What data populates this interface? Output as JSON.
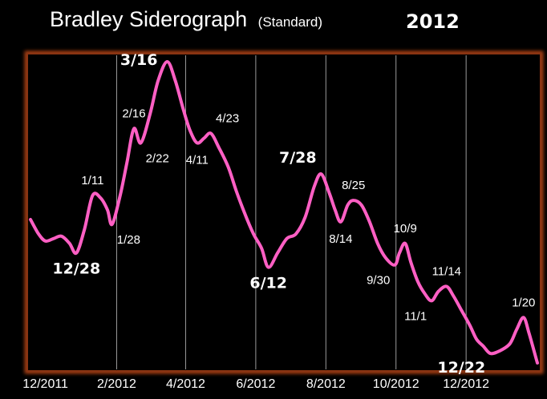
{
  "chart_data": {
    "type": "line",
    "title": "Bradley Siderograph",
    "title_note": "(Standard)",
    "title_year": "2012",
    "xlabel": "",
    "ylabel": "",
    "x_range": [
      "2011-11-18",
      "2013-02-01"
    ],
    "y_axis": "unlabeled",
    "grid": "vertical lines at two-month intervals",
    "colors": {
      "line": "#ff5fc4",
      "frame": "#b44a18",
      "grid": "#9a9a9a",
      "background": "#000000",
      "text": "#ffffff"
    },
    "x_ticks": [
      {
        "date": "2011-12-01",
        "label": "12/2011"
      },
      {
        "date": "2012-02-01",
        "label": "2/2012"
      },
      {
        "date": "2012-04-01",
        "label": "4/2012"
      },
      {
        "date": "2012-06-01",
        "label": "6/2012"
      },
      {
        "date": "2012-08-01",
        "label": "8/2012"
      },
      {
        "date": "2012-10-01",
        "label": "10/2012"
      },
      {
        "date": "2012-12-01",
        "label": "12/2012"
      }
    ],
    "series": [
      {
        "points": [
          [
            "2011-11-18",
            62
          ],
          [
            "2011-11-25",
            56
          ],
          [
            "2011-12-01",
            53
          ],
          [
            "2011-12-08",
            54
          ],
          [
            "2011-12-15",
            55
          ],
          [
            "2011-12-22",
            52
          ],
          [
            "2011-12-28",
            48
          ],
          [
            "2012-01-04",
            58
          ],
          [
            "2012-01-11",
            72
          ],
          [
            "2012-01-18",
            71
          ],
          [
            "2012-01-24",
            66
          ],
          [
            "2012-01-28",
            60
          ],
          [
            "2012-02-04",
            72
          ],
          [
            "2012-02-10",
            86
          ],
          [
            "2012-02-16",
            100
          ],
          [
            "2012-02-22",
            94
          ],
          [
            "2012-03-01",
            106
          ],
          [
            "2012-03-08",
            120
          ],
          [
            "2012-03-16",
            128
          ],
          [
            "2012-03-23",
            120
          ],
          [
            "2012-03-30",
            108
          ],
          [
            "2012-04-05",
            99
          ],
          [
            "2012-04-11",
            94
          ],
          [
            "2012-04-17",
            96
          ],
          [
            "2012-04-23",
            98
          ],
          [
            "2012-04-30",
            92
          ],
          [
            "2012-05-08",
            84
          ],
          [
            "2012-05-15",
            74
          ],
          [
            "2012-05-22",
            65
          ],
          [
            "2012-05-30",
            56
          ],
          [
            "2012-06-06",
            50
          ],
          [
            "2012-06-12",
            42
          ],
          [
            "2012-06-20",
            48
          ],
          [
            "2012-06-28",
            54
          ],
          [
            "2012-07-06",
            56
          ],
          [
            "2012-07-14",
            63
          ],
          [
            "2012-07-22",
            76
          ],
          [
            "2012-07-28",
            81
          ],
          [
            "2012-08-04",
            73
          ],
          [
            "2012-08-09",
            66
          ],
          [
            "2012-08-14",
            61
          ],
          [
            "2012-08-20",
            68
          ],
          [
            "2012-08-25",
            70
          ],
          [
            "2012-09-01",
            68
          ],
          [
            "2012-09-08",
            61
          ],
          [
            "2012-09-15",
            52
          ],
          [
            "2012-09-22",
            46
          ],
          [
            "2012-09-30",
            43
          ],
          [
            "2012-10-04",
            48
          ],
          [
            "2012-10-09",
            52
          ],
          [
            "2012-10-14",
            44
          ],
          [
            "2012-10-20",
            36
          ],
          [
            "2012-10-26",
            31
          ],
          [
            "2012-11-01",
            28
          ],
          [
            "2012-11-07",
            32
          ],
          [
            "2012-11-14",
            34
          ],
          [
            "2012-11-20",
            30
          ],
          [
            "2012-11-27",
            24
          ],
          [
            "2012-12-04",
            18
          ],
          [
            "2012-12-10",
            12
          ],
          [
            "2012-12-16",
            9
          ],
          [
            "2012-12-22",
            6
          ],
          [
            "2012-12-30",
            7
          ],
          [
            "2013-01-08",
            10
          ],
          [
            "2013-01-14",
            16
          ],
          [
            "2013-01-20",
            21
          ],
          [
            "2013-01-25",
            14
          ],
          [
            "2013-02-01",
            2
          ]
        ]
      }
    ],
    "annotations": [
      {
        "text": "12/28",
        "date": "2011-12-28",
        "value": 48,
        "placement": "below",
        "bold": true
      },
      {
        "text": "1/11",
        "date": "2012-01-11",
        "value": 72,
        "placement": "above",
        "bold": false
      },
      {
        "text": "1/28",
        "date": "2012-01-28",
        "value": 60,
        "placement": "below-right",
        "bold": false
      },
      {
        "text": "2/16",
        "date": "2012-02-16",
        "value": 100,
        "placement": "above",
        "bold": false
      },
      {
        "text": "2/22",
        "date": "2012-02-22",
        "value": 94,
        "placement": "below-right",
        "bold": false
      },
      {
        "text": "3/16",
        "date": "2012-03-16",
        "value": 128,
        "placement": "left",
        "bold": true
      },
      {
        "text": "4/11",
        "date": "2012-04-11",
        "value": 94,
        "placement": "below",
        "bold": false
      },
      {
        "text": "4/23",
        "date": "2012-04-23",
        "value": 98,
        "placement": "above-right",
        "bold": false
      },
      {
        "text": "6/12",
        "date": "2012-06-12",
        "value": 42,
        "placement": "below",
        "bold": true
      },
      {
        "text": "7/28",
        "date": "2012-07-28",
        "value": 81,
        "placement": "above-left",
        "bold": true
      },
      {
        "text": "8/14",
        "date": "2012-08-14",
        "value": 61,
        "placement": "below",
        "bold": false
      },
      {
        "text": "8/25",
        "date": "2012-08-25",
        "value": 70,
        "placement": "above",
        "bold": false
      },
      {
        "text": "9/30",
        "date": "2012-09-30",
        "value": 43,
        "placement": "below-left",
        "bold": false
      },
      {
        "text": "10/9",
        "date": "2012-10-09",
        "value": 52,
        "placement": "above",
        "bold": false
      },
      {
        "text": "11/1",
        "date": "2012-11-01",
        "value": 28,
        "placement": "below-left",
        "bold": false
      },
      {
        "text": "11/14",
        "date": "2012-11-14",
        "value": 34,
        "placement": "above",
        "bold": false
      },
      {
        "text": "12/22",
        "date": "2012-12-22",
        "value": 6,
        "placement": "below-left",
        "bold": true
      },
      {
        "text": "1/20",
        "date": "2013-01-20",
        "value": 21,
        "placement": "above",
        "bold": false
      }
    ]
  }
}
